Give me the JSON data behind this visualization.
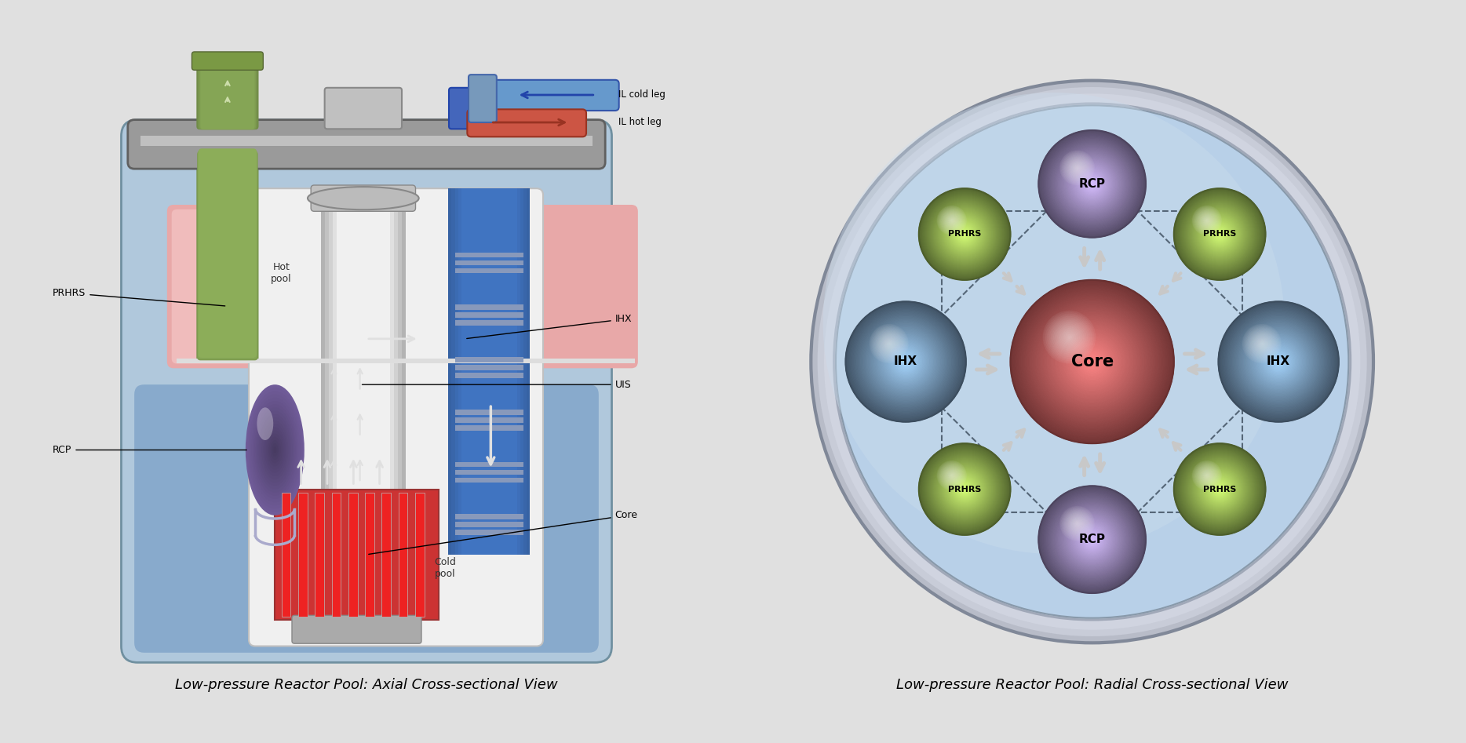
{
  "bg_color": "#e0e0e0",
  "title_left": "Low-pressure Reactor Pool: Axial Cross-sectional View",
  "title_right": "Low-pressure Reactor Pool: Radial Cross-sectional View",
  "title_fontsize": 13,
  "legend_cold_leg": "IL cold leg",
  "legend_hot_leg": "IL hot leg",
  "cold_leg_color": "#6699cc",
  "hot_leg_color": "#cc5544",
  "vessel_gray": "#909090",
  "vessel_light": "#c0c0c0",
  "vessel_dark": "#606060",
  "tank_blue": "#a0b8cc",
  "cold_pool_blue": "#8aafcc",
  "hot_pool_pink": "#e8a8a8",
  "hot_pool_pink2": "#f0c0c0",
  "inner_vessel_white": "#f0f0f0",
  "core_red": "#cc3333",
  "core_bar_red": "#dd2222",
  "uis_gray": "#d0d0d0",
  "prhrs_green_dark": "#7a9944",
  "prhrs_green_mid": "#8aaa55",
  "prhrs_green_light": "#aabb77",
  "ihx_blue_dark": "#3355aa",
  "ihx_blue_mid": "#4466bb",
  "ihx_blue_light": "#6688cc",
  "rcp_purple_dark": "#6655aa",
  "rcp_purple_mid": "#7766bb",
  "rcp_purple_light": "#9988cc",
  "right_core_color": "#d06060",
  "right_ihx_color": "#7799bb",
  "right_rcp_color": "#9988bb",
  "right_prhrs_color": "#99bb55",
  "right_pool_color": "#b8d0e8",
  "right_outer_ring": "#c0c8d0"
}
